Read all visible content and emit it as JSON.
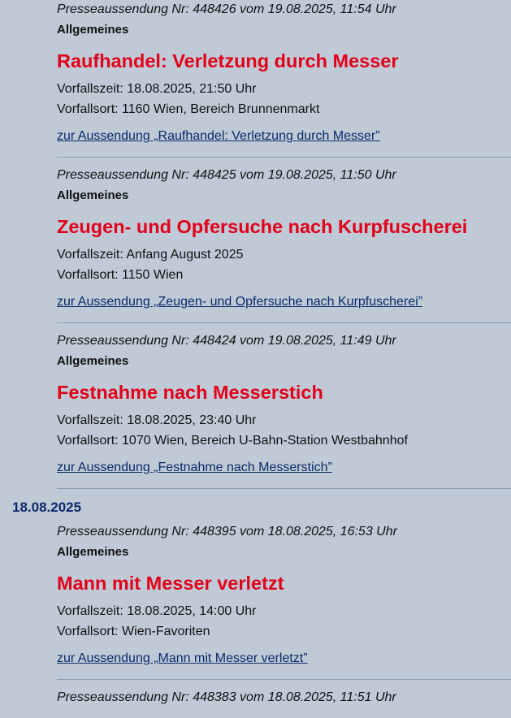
{
  "colors": {
    "background": "#bfcad6",
    "title": "#e2001a",
    "link": "#0a2a6a",
    "date": "#0a2a6a"
  },
  "entries_19": [
    {
      "meta": "Presseaussendung Nr: 448426 vom 19.08.2025, 11:54 Uhr",
      "category": "Allgemeines",
      "title": "Raufhandel: Verletzung durch Messer",
      "time": "Vorfallszeit: 18.08.2025, 21:50 Uhr",
      "place": "Vorfallsort: 1160 Wien, Bereich Brunnenmarkt",
      "link": "zur Aussendung „Raufhandel: Verletzung durch Messer”"
    },
    {
      "meta": "Presseaussendung Nr: 448425 vom 19.08.2025, 11:50 Uhr",
      "category": "Allgemeines",
      "title": "Zeugen- und Opfersuche nach Kurpfuscherei",
      "time": "Vorfallszeit: Anfang August 2025",
      "place": "Vorfallsort: 1150 Wien",
      "link": "zur Aussendung „Zeugen- und Opfersuche nach Kurpfuscherei”"
    },
    {
      "meta": "Presseaussendung Nr: 448424 vom 19.08.2025, 11:49 Uhr",
      "category": "Allgemeines",
      "title": "Festnahme nach Messerstich",
      "time": "Vorfallszeit: 18.08.2025, 23:40 Uhr",
      "place": "Vorfallsort: 1070 Wien, Bereich U-Bahn-Station Westbahnhof",
      "link": "zur Aussendung „Festnahme nach Messerstich”"
    }
  ],
  "date_heading": "18.08.2025",
  "entries_18": [
    {
      "meta": "Presseaussendung Nr: 448395 vom 18.08.2025, 16:53 Uhr",
      "category": "Allgemeines",
      "title": "Mann mit Messer verletzt",
      "time": "Vorfallszeit: 18.08.2025, 14:00 Uhr",
      "place": "Vorfallsort: Wien-Favoriten",
      "link": "zur Aussendung „Mann mit Messer verletzt”"
    },
    {
      "meta": "Presseaussendung Nr: 448383 vom 18.08.2025, 11:51 Uhr"
    }
  ]
}
